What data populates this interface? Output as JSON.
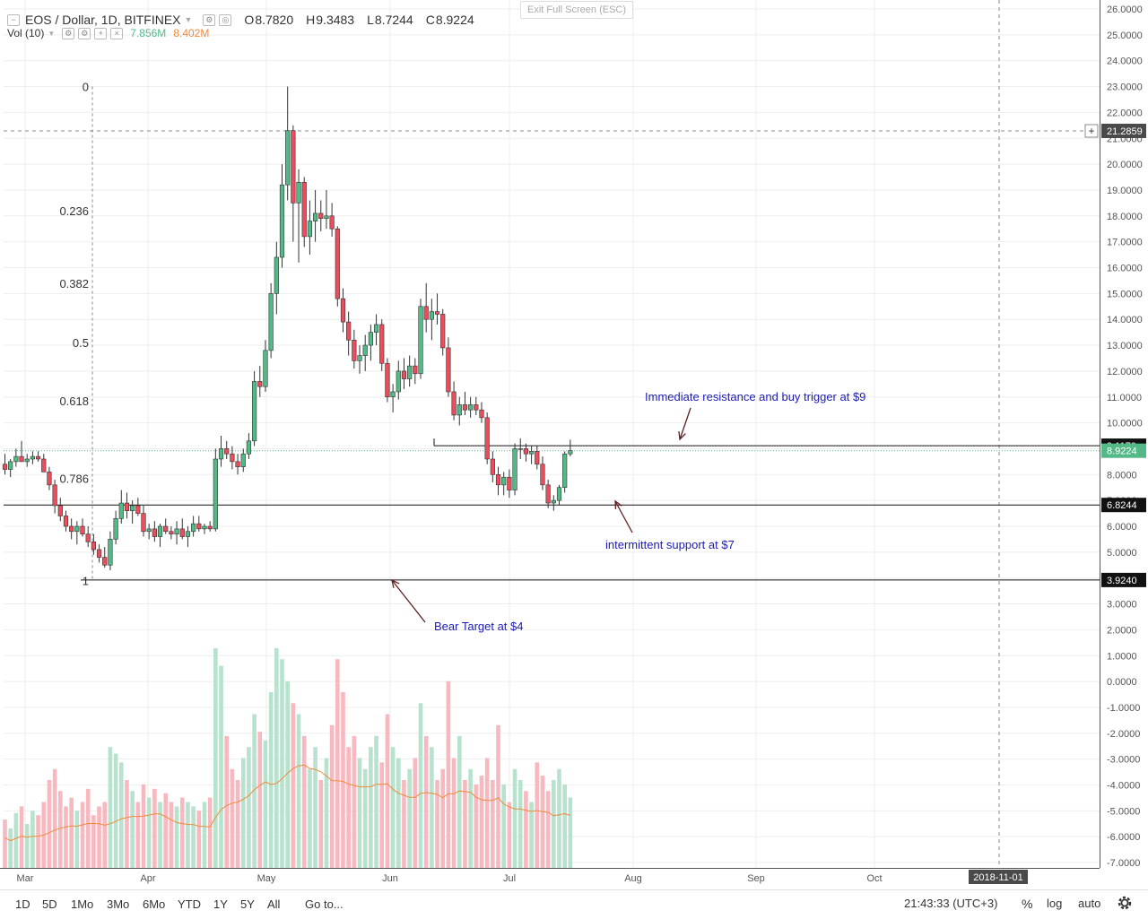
{
  "legend": {
    "symbol": "EOS / Dollar, 1D, BITFINEX",
    "o_label": "O",
    "o": "8.7820",
    "h_label": "H",
    "h": "9.3483",
    "l_label": "L",
    "l": "8.7244",
    "c_label": "C",
    "c": "8.9224",
    "vol_label": "Vol (10)",
    "vol_value": "7.856M",
    "vol_ma": "8.402M"
  },
  "exit_fullscreen": "Exit Full Screen (ESC)",
  "colors": {
    "up": "#53b987",
    "down": "#eb4d5c",
    "up_vol": "#b7e2cd",
    "down_vol": "#f7b9bf",
    "annotation": "#1b1bb3",
    "arrow": "#5c1f1f",
    "ma": "#f08a3a"
  },
  "bottom": {
    "ranges": [
      "1D",
      "5D",
      "1Mo",
      "3Mo",
      "6Mo",
      "YTD",
      "1Y",
      "5Y",
      "All"
    ],
    "goto": "Go to...",
    "time": "21:43:33 (UTC+3)",
    "percent": "%",
    "log": "log",
    "auto": "auto"
  },
  "chart_data": {
    "type": "candlestick",
    "title": "EOS / Dollar, 1D, BITFINEX",
    "y_ticks": [
      "26.0000",
      "25.0000",
      "24.0000",
      "23.0000",
      "22.0000",
      "21.0000",
      "20.0000",
      "19.0000",
      "18.0000",
      "17.0000",
      "16.0000",
      "15.0000",
      "14.0000",
      "13.0000",
      "12.0000",
      "11.0000",
      "10.0000",
      "9.0000",
      "8.0000",
      "7.0000",
      "6.0000",
      "5.0000",
      "4.0000",
      "3.0000",
      "2.0000",
      "1.0000",
      "0.0000",
      "-1.0000",
      "-2.0000",
      "-3.0000",
      "-4.0000",
      "-5.0000",
      "-6.0000",
      "-7.0000"
    ],
    "ylim": [
      -7.3,
      26.3
    ],
    "x_ticks": [
      "Mar",
      "Apr",
      "May",
      "Jun",
      "Jul",
      "Aug",
      "Sep",
      "Oct"
    ],
    "x_date_label": "2018-11-01",
    "price_labels": [
      {
        "text": "21.2859",
        "value": 21.2859,
        "style": "crosshair"
      },
      {
        "text": "9.1170",
        "value": 9.117,
        "style": "line"
      },
      {
        "text": "8.9224",
        "value": 8.9224,
        "style": "last"
      },
      {
        "text": "6.8244",
        "value": 6.8244,
        "style": "line"
      },
      {
        "text": "3.9240",
        "value": 3.924,
        "style": "line"
      }
    ],
    "fib_levels": [
      {
        "label": "0",
        "value": 23.0
      },
      {
        "label": "0.236",
        "value": 18.2
      },
      {
        "label": "0.382",
        "value": 15.4
      },
      {
        "label": "0.5",
        "value": 13.1
      },
      {
        "label": "0.618",
        "value": 10.85
      },
      {
        "label": "0.786",
        "value": 7.85
      },
      {
        "label": "1",
        "value": 3.9
      }
    ],
    "horizontal_lines": [
      9.117,
      6.8244,
      3.924
    ],
    "annotations": [
      {
        "text": "Immediate resistance and buy trigger at $9"
      },
      {
        "text": "intermittent support at $7"
      },
      {
        "text": "Bear Target at $4"
      }
    ],
    "candles": [
      [
        8.4,
        8.8,
        8.0,
        8.2
      ],
      [
        8.2,
        8.6,
        7.9,
        8.5
      ],
      [
        8.5,
        9.0,
        8.3,
        8.7
      ],
      [
        8.7,
        9.3,
        8.5,
        8.5
      ],
      [
        8.5,
        8.8,
        8.3,
        8.6
      ],
      [
        8.6,
        8.9,
        8.4,
        8.7
      ],
      [
        8.7,
        8.9,
        8.5,
        8.6
      ],
      [
        8.6,
        8.8,
        8.3,
        8.1
      ],
      [
        8.1,
        8.3,
        7.4,
        7.6
      ],
      [
        7.6,
        7.8,
        6.5,
        6.8
      ],
      [
        6.8,
        7.1,
        6.2,
        6.4
      ],
      [
        6.4,
        6.6,
        5.8,
        6.0
      ],
      [
        6.0,
        6.3,
        5.5,
        5.8
      ],
      [
        5.8,
        6.2,
        5.3,
        6.0
      ],
      [
        6.0,
        6.3,
        5.6,
        5.7
      ],
      [
        5.7,
        6.0,
        5.2,
        5.4
      ],
      [
        5.4,
        5.7,
        4.9,
        5.1
      ],
      [
        5.1,
        5.3,
        4.6,
        4.8
      ],
      [
        4.8,
        5.2,
        4.4,
        4.5
      ],
      [
        4.5,
        5.8,
        4.3,
        5.5
      ],
      [
        5.5,
        6.6,
        5.3,
        6.3
      ],
      [
        6.3,
        7.4,
        6.1,
        6.9
      ],
      [
        6.9,
        7.3,
        6.3,
        6.6
      ],
      [
        6.6,
        7.0,
        6.1,
        6.8
      ],
      [
        6.8,
        7.1,
        6.4,
        6.5
      ],
      [
        6.5,
        6.8,
        5.6,
        5.8
      ],
      [
        5.8,
        6.1,
        5.5,
        5.9
      ],
      [
        5.9,
        6.2,
        5.4,
        5.6
      ],
      [
        5.6,
        6.1,
        5.2,
        6.0
      ],
      [
        6.0,
        6.3,
        5.7,
        5.8
      ],
      [
        5.8,
        6.0,
        5.5,
        5.7
      ],
      [
        5.7,
        6.2,
        5.3,
        5.9
      ],
      [
        5.9,
        6.3,
        5.5,
        5.6
      ],
      [
        5.6,
        6.0,
        5.2,
        5.8
      ],
      [
        5.8,
        6.4,
        5.6,
        6.1
      ],
      [
        6.1,
        6.4,
        5.8,
        5.9
      ],
      [
        5.9,
        6.1,
        5.7,
        6.0
      ],
      [
        6.0,
        6.2,
        5.8,
        5.9
      ],
      [
        5.9,
        9.0,
        5.8,
        8.6
      ],
      [
        8.6,
        9.5,
        8.3,
        9.0
      ],
      [
        9.0,
        9.3,
        8.6,
        8.8
      ],
      [
        8.8,
        9.1,
        8.2,
        8.5
      ],
      [
        8.5,
        8.8,
        8.0,
        8.3
      ],
      [
        8.3,
        9.0,
        8.1,
        8.8
      ],
      [
        8.8,
        9.6,
        8.6,
        9.3
      ],
      [
        9.3,
        12.0,
        9.1,
        11.6
      ],
      [
        11.6,
        12.2,
        11.0,
        11.4
      ],
      [
        11.4,
        13.2,
        11.2,
        12.8
      ],
      [
        12.8,
        15.4,
        12.5,
        15.0
      ],
      [
        15.0,
        17.0,
        14.2,
        16.4
      ],
      [
        16.4,
        20.0,
        16.0,
        19.2
      ],
      [
        19.2,
        23.0,
        18.6,
        21.3
      ],
      [
        21.3,
        21.5,
        17.0,
        18.5
      ],
      [
        18.5,
        19.8,
        16.2,
        19.3
      ],
      [
        19.3,
        19.5,
        16.8,
        17.2
      ],
      [
        17.2,
        18.6,
        16.5,
        17.8
      ],
      [
        17.8,
        19.0,
        17.0,
        18.1
      ],
      [
        18.1,
        18.6,
        17.4,
        17.9
      ],
      [
        17.9,
        19.0,
        17.5,
        18.0
      ],
      [
        18.0,
        18.5,
        17.2,
        17.5
      ],
      [
        17.5,
        17.6,
        14.5,
        14.8
      ],
      [
        14.8,
        15.2,
        13.5,
        13.9
      ],
      [
        13.9,
        14.3,
        12.6,
        13.2
      ],
      [
        13.2,
        13.6,
        12.1,
        12.4
      ],
      [
        12.4,
        13.0,
        11.9,
        12.6
      ],
      [
        12.6,
        13.4,
        12.0,
        13.0
      ],
      [
        13.0,
        13.8,
        12.4,
        13.5
      ],
      [
        13.5,
        14.2,
        13.0,
        13.8
      ],
      [
        13.8,
        14.0,
        12.0,
        12.3
      ],
      [
        12.3,
        12.5,
        10.8,
        11.0
      ],
      [
        11.0,
        11.5,
        10.4,
        11.2
      ],
      [
        11.2,
        12.4,
        10.9,
        12.0
      ],
      [
        12.0,
        12.5,
        11.3,
        11.7
      ],
      [
        11.7,
        12.6,
        11.4,
        12.2
      ],
      [
        12.2,
        12.5,
        11.5,
        11.9
      ],
      [
        11.9,
        14.8,
        11.7,
        14.5
      ],
      [
        14.5,
        15.4,
        13.5,
        14.0
      ],
      [
        14.0,
        14.8,
        13.2,
        14.3
      ],
      [
        14.3,
        15.0,
        13.8,
        14.2
      ],
      [
        14.2,
        14.4,
        12.6,
        12.9
      ],
      [
        12.9,
        13.3,
        11.0,
        11.2
      ],
      [
        11.2,
        11.6,
        10.1,
        10.3
      ],
      [
        10.3,
        11.0,
        9.9,
        10.7
      ],
      [
        10.7,
        11.2,
        10.3,
        10.5
      ],
      [
        10.5,
        11.0,
        10.2,
        10.7
      ],
      [
        10.7,
        11.0,
        10.3,
        10.5
      ],
      [
        10.5,
        10.8,
        10.0,
        10.2
      ],
      [
        10.2,
        10.4,
        8.4,
        8.6
      ],
      [
        8.6,
        8.9,
        7.7,
        8.0
      ],
      [
        8.0,
        8.3,
        7.2,
        7.6
      ],
      [
        7.6,
        8.1,
        7.2,
        7.9
      ],
      [
        7.9,
        8.2,
        7.1,
        7.4
      ],
      [
        7.4,
        9.2,
        7.2,
        9.0
      ],
      [
        9.0,
        9.4,
        8.6,
        9.0
      ],
      [
        9.0,
        9.2,
        8.5,
        8.8
      ],
      [
        8.8,
        9.1,
        8.4,
        8.9
      ],
      [
        8.9,
        9.1,
        8.2,
        8.4
      ],
      [
        8.4,
        8.7,
        7.4,
        7.6
      ],
      [
        7.6,
        7.8,
        6.7,
        6.9
      ],
      [
        6.9,
        7.2,
        6.6,
        7.0
      ],
      [
        7.0,
        7.6,
        6.8,
        7.5
      ],
      [
        7.5,
        8.9,
        7.3,
        8.8
      ],
      [
        8.8,
        9.35,
        8.7,
        8.9224
      ]
    ],
    "volume_scale": "relative 0-1",
    "volume": [
      0.22,
      0.18,
      0.25,
      0.28,
      0.2,
      0.26,
      0.24,
      0.3,
      0.4,
      0.45,
      0.35,
      0.28,
      0.32,
      0.26,
      0.3,
      0.36,
      0.24,
      0.28,
      0.3,
      0.55,
      0.52,
      0.48,
      0.4,
      0.35,
      0.3,
      0.38,
      0.32,
      0.36,
      0.3,
      0.34,
      0.3,
      0.28,
      0.32,
      0.3,
      0.28,
      0.26,
      0.3,
      0.32,
      1.0,
      0.92,
      0.6,
      0.45,
      0.4,
      0.5,
      0.55,
      0.7,
      0.62,
      0.58,
      0.8,
      1.0,
      0.95,
      0.85,
      0.75,
      0.7,
      0.6,
      0.45,
      0.55,
      0.4,
      0.5,
      0.65,
      0.95,
      0.8,
      0.55,
      0.6,
      0.5,
      0.45,
      0.55,
      0.6,
      0.48,
      0.7,
      0.55,
      0.5,
      0.4,
      0.45,
      0.5,
      0.75,
      0.6,
      0.55,
      0.4,
      0.45,
      0.85,
      0.5,
      0.6,
      0.4,
      0.45,
      0.38,
      0.42,
      0.5,
      0.4,
      0.65,
      0.38,
      0.3,
      0.45,
      0.4,
      0.35,
      0.3,
      0.48,
      0.42,
      0.35,
      0.4,
      0.45,
      0.38,
      0.32
    ]
  }
}
